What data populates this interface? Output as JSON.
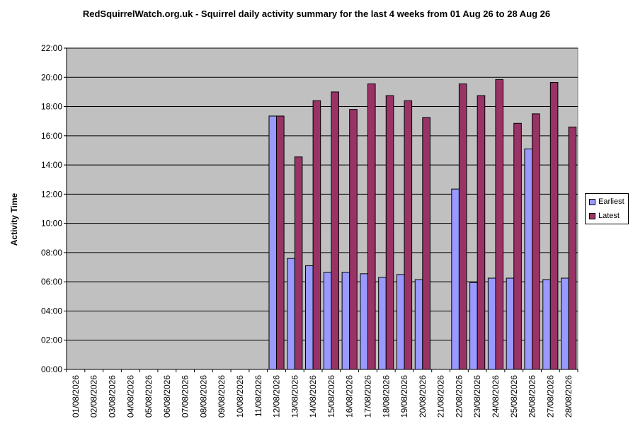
{
  "chart_data": {
    "type": "bar",
    "title": "RedSquirrelWatch.org.uk - Squirrel daily activity summary for the last 4 weeks from 01 Aug 26 to 28 Aug 26",
    "ylabel": "Activity Time",
    "xlabel": "",
    "ylim": [
      0,
      22
    ],
    "yticks": [
      "00:00",
      "02:00",
      "04:00",
      "06:00",
      "08:00",
      "10:00",
      "12:00",
      "14:00",
      "16:00",
      "18:00",
      "20:00",
      "22:00"
    ],
    "categories": [
      "01/08/2026",
      "02/08/2026",
      "03/08/2026",
      "04/08/2026",
      "05/08/2026",
      "06/08/2026",
      "07/08/2026",
      "08/08/2026",
      "09/08/2026",
      "10/08/2026",
      "11/08/2026",
      "12/08/2026",
      "13/08/2026",
      "14/08/2026",
      "15/08/2026",
      "16/08/2026",
      "17/08/2026",
      "18/08/2026",
      "19/08/2026",
      "20/08/2026",
      "21/08/2026",
      "22/08/2026",
      "23/08/2026",
      "24/08/2026",
      "25/08/2026",
      "26/08/2026",
      "27/08/2026",
      "28/08/2026"
    ],
    "series": [
      {
        "name": "Earliest",
        "color": "#9999ff",
        "values": [
          null,
          null,
          null,
          null,
          null,
          null,
          null,
          null,
          null,
          null,
          null,
          17.35,
          7.6,
          7.1,
          6.65,
          6.65,
          6.55,
          6.3,
          6.5,
          6.15,
          null,
          12.35,
          5.95,
          6.25,
          6.25,
          15.1,
          6.15,
          6.25
        ]
      },
      {
        "name": "Latest",
        "color": "#993366",
        "values": [
          null,
          null,
          null,
          null,
          null,
          null,
          null,
          null,
          null,
          null,
          null,
          17.35,
          14.55,
          18.4,
          19.0,
          17.8,
          19.55,
          18.75,
          18.4,
          17.25,
          null,
          19.55,
          18.75,
          19.85,
          16.85,
          17.5,
          19.65,
          16.6
        ]
      }
    ],
    "grid": true,
    "plot_background": "#c0c0c0",
    "legend_position": "right"
  }
}
